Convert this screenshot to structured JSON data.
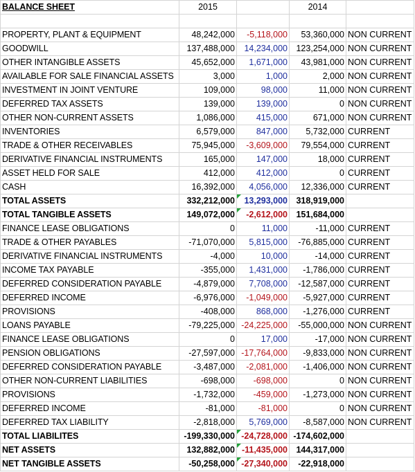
{
  "header": {
    "title": "BALANCE SHEET",
    "year1": "2015",
    "change": "",
    "year2": "2014",
    "type": ""
  },
  "rows": [
    {
      "label": "",
      "y1": "",
      "chg": "",
      "chg_dir": "",
      "y2": "",
      "type": "",
      "bold": false,
      "mark": false
    },
    {
      "label": "PROPERTY, PLANT & EQUIPMENT",
      "y1": "48,242,000",
      "chg": "-5,118,000",
      "chg_dir": "neg",
      "y2": "53,360,000",
      "type": "NON CURRENT",
      "bold": false,
      "mark": false
    },
    {
      "label": "GOODWILL",
      "y1": "137,488,000",
      "chg": "14,234,000",
      "chg_dir": "pos",
      "y2": "123,254,000",
      "type": "NON CURRENT",
      "bold": false,
      "mark": false
    },
    {
      "label": "OTHER INTANGIBLE ASSETS",
      "y1": "45,652,000",
      "chg": "1,671,000",
      "chg_dir": "pos",
      "y2": "43,981,000",
      "type": "NON CURRENT",
      "bold": false,
      "mark": false
    },
    {
      "label": "AVAILABLE FOR SALE FINANCIAL ASSETS",
      "y1": "3,000",
      "chg": "1,000",
      "chg_dir": "pos",
      "y2": "2,000",
      "type": "NON CURRENT",
      "bold": false,
      "mark": false
    },
    {
      "label": "INVESTMENT IN JOINT VENTURE",
      "y1": "109,000",
      "chg": "98,000",
      "chg_dir": "pos",
      "y2": "11,000",
      "type": "NON CURRENT",
      "bold": false,
      "mark": false
    },
    {
      "label": "DEFERRED TAX ASSETS",
      "y1": "139,000",
      "chg": "139,000",
      "chg_dir": "pos",
      "y2": "0",
      "type": "NON CURRENT",
      "bold": false,
      "mark": false
    },
    {
      "label": "OTHER NON-CURRENT ASSETS",
      "y1": "1,086,000",
      "chg": "415,000",
      "chg_dir": "pos",
      "y2": "671,000",
      "type": "NON CURRENT",
      "bold": false,
      "mark": false
    },
    {
      "label": "INVENTORIES",
      "y1": "6,579,000",
      "chg": "847,000",
      "chg_dir": "pos",
      "y2": "5,732,000",
      "type": "CURRENT",
      "bold": false,
      "mark": false
    },
    {
      "label": "TRADE & OTHER RECEIVABLES",
      "y1": "75,945,000",
      "chg": "-3,609,000",
      "chg_dir": "neg",
      "y2": "79,554,000",
      "type": "CURRENT",
      "bold": false,
      "mark": false
    },
    {
      "label": "DERIVATIVE FINANCIAL INSTRUMENTS",
      "y1": "165,000",
      "chg": "147,000",
      "chg_dir": "pos",
      "y2": "18,000",
      "type": "CURRENT",
      "bold": false,
      "mark": false
    },
    {
      "label": "ASSET HELD FOR SALE",
      "y1": "412,000",
      "chg": "412,000",
      "chg_dir": "pos",
      "y2": "0",
      "type": "CURRENT",
      "bold": false,
      "mark": false
    },
    {
      "label": "CASH",
      "y1": "16,392,000",
      "chg": "4,056,000",
      "chg_dir": "pos",
      "y2": "12,336,000",
      "type": "CURRENT",
      "bold": false,
      "mark": false
    },
    {
      "label": "TOTAL ASSETS",
      "y1": "332,212,000",
      "chg": "13,293,000",
      "chg_dir": "pos",
      "y2": "318,919,000",
      "type": "",
      "bold": true,
      "mark": true
    },
    {
      "label": "TOTAL TANGIBLE ASSETS",
      "y1": "149,072,000",
      "chg": "-2,612,000",
      "chg_dir": "neg",
      "y2": "151,684,000",
      "type": "",
      "bold": true,
      "mark": true
    },
    {
      "label": "FINANCE LEASE OBLIGATIONS",
      "y1": "0",
      "chg": "11,000",
      "chg_dir": "pos",
      "y2": "-11,000",
      "type": "CURRENT",
      "bold": false,
      "mark": false
    },
    {
      "label": "TRADE & OTHER PAYABLES",
      "y1": "-71,070,000",
      "chg": "5,815,000",
      "chg_dir": "pos",
      "y2": "-76,885,000",
      "type": "CURRENT",
      "bold": false,
      "mark": false
    },
    {
      "label": "DERIVATIVE FINANCIAL INSTRUMENTS",
      "y1": "-4,000",
      "chg": "10,000",
      "chg_dir": "pos",
      "y2": "-14,000",
      "type": "CURRENT",
      "bold": false,
      "mark": false
    },
    {
      "label": "INCOME TAX PAYABLE",
      "y1": "-355,000",
      "chg": "1,431,000",
      "chg_dir": "pos",
      "y2": "-1,786,000",
      "type": "CURRENT",
      "bold": false,
      "mark": false
    },
    {
      "label": "DEFERRED CONSIDERATION PAYABLE",
      "y1": "-4,879,000",
      "chg": "7,708,000",
      "chg_dir": "pos",
      "y2": "-12,587,000",
      "type": "CURRENT",
      "bold": false,
      "mark": false
    },
    {
      "label": "DEFERRED INCOME",
      "y1": "-6,976,000",
      "chg": "-1,049,000",
      "chg_dir": "neg",
      "y2": "-5,927,000",
      "type": "CURRENT",
      "bold": false,
      "mark": false
    },
    {
      "label": "PROVISIONS",
      "y1": "-408,000",
      "chg": "868,000",
      "chg_dir": "pos",
      "y2": "-1,276,000",
      "type": "CURRENT",
      "bold": false,
      "mark": false
    },
    {
      "label": "LOANS PAYABLE",
      "y1": "-79,225,000",
      "chg": "-24,225,000",
      "chg_dir": "neg",
      "y2": "-55,000,000",
      "type": "NON CURRENT",
      "bold": false,
      "mark": false
    },
    {
      "label": "FINANCE LEASE OBLIGATIONS",
      "y1": "0",
      "chg": "17,000",
      "chg_dir": "pos",
      "y2": "-17,000",
      "type": "NON CURRENT",
      "bold": false,
      "mark": false
    },
    {
      "label": "PENSION OBLIGATIONS",
      "y1": "-27,597,000",
      "chg": "-17,764,000",
      "chg_dir": "neg",
      "y2": "-9,833,000",
      "type": "NON CURRENT",
      "bold": false,
      "mark": false
    },
    {
      "label": "DEFERRED CONSIDERATION PAYABLE",
      "y1": "-3,487,000",
      "chg": "-2,081,000",
      "chg_dir": "neg",
      "y2": "-1,406,000",
      "type": "NON CURRENT",
      "bold": false,
      "mark": false
    },
    {
      "label": "OTHER NON-CURRENT LIABILITIES",
      "y1": "-698,000",
      "chg": "-698,000",
      "chg_dir": "neg",
      "y2": "0",
      "type": "NON CURRENT",
      "bold": false,
      "mark": false
    },
    {
      "label": "PROVISIONS",
      "y1": "-1,732,000",
      "chg": "-459,000",
      "chg_dir": "neg",
      "y2": "-1,273,000",
      "type": "NON CURRENT",
      "bold": false,
      "mark": false
    },
    {
      "label": "DEFERRED INCOME",
      "y1": "-81,000",
      "chg": "-81,000",
      "chg_dir": "neg",
      "y2": "0",
      "type": "NON CURRENT",
      "bold": false,
      "mark": false
    },
    {
      "label": "DEFERRED TAX LIABILITY",
      "y1": "-2,818,000",
      "chg": "5,769,000",
      "chg_dir": "pos",
      "y2": "-8,587,000",
      "type": "NON CURRENT",
      "bold": false,
      "mark": false
    },
    {
      "label": "TOTAL LIABILITES",
      "y1": "-199,330,000",
      "chg": "-24,728,000",
      "chg_dir": "neg",
      "y2": "-174,602,000",
      "type": "",
      "bold": true,
      "mark": true
    },
    {
      "label": "NET ASSETS",
      "y1": "132,882,000",
      "chg": "-11,435,000",
      "chg_dir": "neg",
      "y2": "144,317,000",
      "type": "",
      "bold": true,
      "mark": true
    },
    {
      "label": "NET TANGIBLE ASSETS",
      "y1": "-50,258,000",
      "chg": "-27,340,000",
      "chg_dir": "neg",
      "y2": "-22,918,000",
      "type": "",
      "bold": true,
      "mark": true
    }
  ],
  "colors": {
    "positive_change": "#1f2f9e",
    "negative_change": "#b4141b",
    "gridline": "#d4d4d4",
    "comment_marker": "#23a33a"
  }
}
